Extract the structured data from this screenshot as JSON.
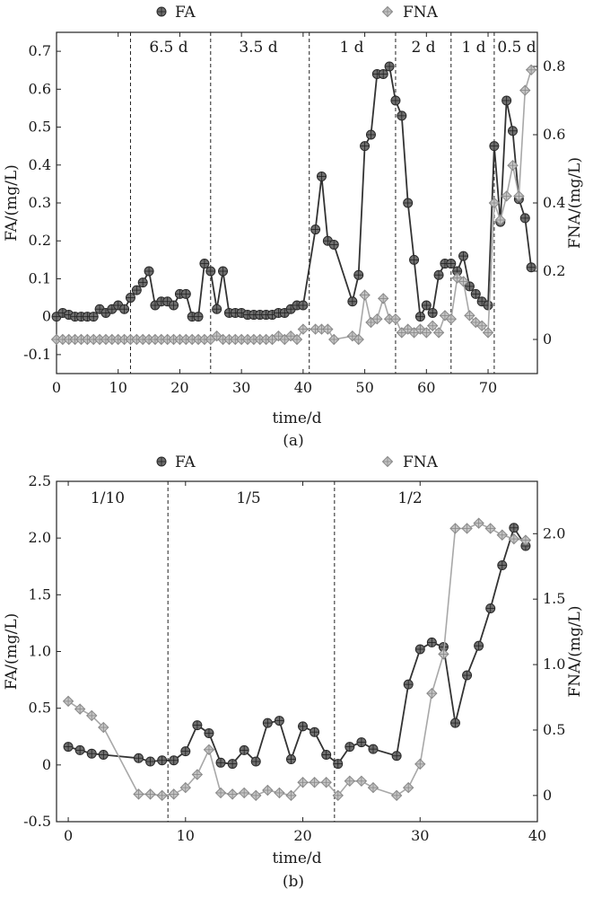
{
  "chart_data": [
    {
      "type": "line",
      "panel_label": "(a)",
      "xlabel": "time/d",
      "ylabel_left": "FA/(mg/L)",
      "ylabel_right": "FNA/(mg/L)",
      "xlim": [
        0,
        78
      ],
      "ylim_left": [
        -0.15,
        0.75
      ],
      "ylim_right": [
        -0.1,
        0.9
      ],
      "xticks": [
        "0",
        "10",
        "20",
        "30",
        "40",
        "50",
        "60",
        "70"
      ],
      "yticks_left": [
        "-0.1",
        "0",
        "0.1",
        "0.2",
        "0.3",
        "0.4",
        "0.5",
        "0.6",
        "0.7"
      ],
      "yticks_right": [
        "0",
        "0.2",
        "0.4",
        "0.6",
        "0.8"
      ],
      "legend": [
        "FA",
        "FNA"
      ],
      "phase_boundaries": [
        12,
        25,
        41,
        55,
        64,
        71
      ],
      "phase_labels": [
        "6.5 d",
        "3.5 d",
        "1 d",
        "2 d",
        "1 d",
        "0.5 d"
      ],
      "series": [
        {
          "name": "FA",
          "x": [
            0,
            1,
            2,
            3,
            4,
            5,
            6,
            7,
            8,
            9,
            10,
            11,
            12,
            13,
            14,
            15,
            16,
            17,
            18,
            19,
            20,
            21,
            22,
            23,
            24,
            25,
            26,
            27,
            28,
            29,
            30,
            31,
            32,
            33,
            34,
            35,
            36,
            37,
            38,
            39,
            40,
            42,
            43,
            44,
            45,
            48,
            49,
            50,
            51,
            52,
            53,
            54,
            55,
            56,
            57,
            58,
            59,
            60,
            61,
            62,
            63,
            64,
            65,
            66,
            67,
            68,
            69,
            70,
            71,
            72,
            73,
            74,
            75,
            76,
            77
          ],
          "values": [
            0,
            0.01,
            0.005,
            0,
            0,
            0,
            0,
            0.02,
            0.01,
            0.02,
            0.03,
            0.02,
            0.05,
            0.07,
            0.09,
            0.12,
            0.03,
            0.04,
            0.04,
            0.03,
            0.06,
            0.06,
            0,
            0,
            0.14,
            0.12,
            0.02,
            0.12,
            0.01,
            0.01,
            0.01,
            0.005,
            0.005,
            0.005,
            0.005,
            0.005,
            0.01,
            0.01,
            0.02,
            0.03,
            0.03,
            0.23,
            0.37,
            0.2,
            0.19,
            0.04,
            0.11,
            0.45,
            0.48,
            0.64,
            0.64,
            0.66,
            0.57,
            0.53,
            0.3,
            0.15,
            0,
            0.03,
            0.01,
            0.11,
            0.14,
            0.14,
            0.12,
            0.16,
            0.08,
            0.06,
            0.04,
            0.03,
            0.45,
            0.25,
            0.57,
            0.49,
            0.31,
            0.26,
            0.13
          ]
        },
        {
          "name": "FNA",
          "x": [
            0,
            1,
            2,
            3,
            4,
            5,
            6,
            7,
            8,
            9,
            10,
            11,
            12,
            13,
            14,
            15,
            16,
            17,
            18,
            19,
            20,
            21,
            22,
            23,
            24,
            25,
            26,
            27,
            28,
            29,
            30,
            31,
            32,
            33,
            34,
            35,
            36,
            37,
            38,
            39,
            40,
            42,
            43,
            44,
            45,
            48,
            49,
            50,
            51,
            52,
            53,
            54,
            55,
            56,
            57,
            58,
            59,
            60,
            61,
            62,
            63,
            64,
            65,
            66,
            67,
            68,
            69,
            70,
            71,
            72,
            73,
            74,
            75,
            76,
            77
          ],
          "values": [
            0,
            0,
            0,
            0,
            0,
            0,
            0,
            0,
            0,
            0,
            0,
            0,
            0,
            0,
            0,
            0,
            0,
            0,
            0,
            0,
            0,
            0,
            0,
            0,
            0,
            0,
            0.01,
            0,
            0,
            0,
            0,
            0,
            0,
            0,
            0,
            0,
            0.01,
            0,
            0.01,
            0,
            0.03,
            0.03,
            0.03,
            0.03,
            0,
            0.01,
            0,
            0.13,
            0.05,
            0.06,
            0.12,
            0.06,
            0.06,
            0.02,
            0.03,
            0.02,
            0.03,
            0.02,
            0.04,
            0.02,
            0.07,
            0.06,
            0.18,
            0.17,
            0.07,
            0.05,
            0.04,
            0.02,
            0.4,
            0.35,
            0.42,
            0.51,
            0.42,
            0.73,
            0.79
          ]
        }
      ]
    },
    {
      "type": "line",
      "panel_label": "(b)",
      "xlabel": "time/d",
      "ylabel_left": "FA/(mg/L)",
      "ylabel_right": "FNA/(mg/L)",
      "xlim": [
        -1,
        40
      ],
      "ylim_left": [
        -0.5,
        2.5
      ],
      "ylim_right": [
        -0.2,
        2.4
      ],
      "xticks": [
        "0",
        "10",
        "20",
        "30",
        "40"
      ],
      "yticks_left": [
        "-0.5",
        "0",
        "0.5",
        "1.0",
        "1.5",
        "2.0",
        "2.5"
      ],
      "yticks_right": [
        "0",
        "0.5",
        "1.0",
        "1.5",
        "2.0"
      ],
      "legend": [
        "FA",
        "FNA"
      ],
      "phase_boundaries": [
        8.5,
        22.7
      ],
      "phase_labels": [
        "1/10",
        "1/5",
        "1/2"
      ],
      "series": [
        {
          "name": "FA",
          "x": [
            0,
            1,
            2,
            3,
            6,
            7,
            8,
            9,
            10,
            11,
            12,
            13,
            14,
            15,
            16,
            17,
            18,
            19,
            20,
            21,
            22,
            23,
            24,
            25,
            26,
            28,
            29,
            30,
            31,
            32,
            33,
            34,
            35,
            36,
            37,
            38,
            39
          ],
          "values": [
            0.16,
            0.13,
            0.1,
            0.09,
            0.06,
            0.03,
            0.04,
            0.04,
            0.12,
            0.35,
            0.28,
            0.02,
            0.01,
            0.13,
            0.03,
            0.37,
            0.39,
            0.05,
            0.34,
            0.29,
            0.09,
            0.01,
            0.16,
            0.2,
            0.14,
            0.08,
            0.71,
            1.02,
            1.08,
            1.04,
            0.37,
            0.79,
            1.05,
            1.38,
            1.76,
            2.09,
            1.93
          ]
        },
        {
          "name": "FNA",
          "x": [
            0,
            1,
            2,
            3,
            6,
            7,
            8,
            9,
            10,
            11,
            12,
            13,
            14,
            15,
            16,
            17,
            18,
            19,
            20,
            21,
            22,
            23,
            24,
            25,
            26,
            28,
            29,
            30,
            31,
            32,
            33,
            34,
            35,
            36,
            37,
            38,
            39
          ],
          "values": [
            0.72,
            0.66,
            0.61,
            0.52,
            0.01,
            0.01,
            0,
            0.01,
            0.06,
            0.16,
            0.35,
            0.02,
            0.01,
            0.02,
            0,
            0.04,
            0.02,
            0,
            0.1,
            0.1,
            0.1,
            0,
            0.11,
            0.11,
            0.06,
            0,
            0.06,
            0.24,
            0.78,
            1.08,
            2.04,
            2.04,
            2.08,
            2.04,
            1.99,
            1.96,
            1.95
          ]
        }
      ]
    }
  ]
}
